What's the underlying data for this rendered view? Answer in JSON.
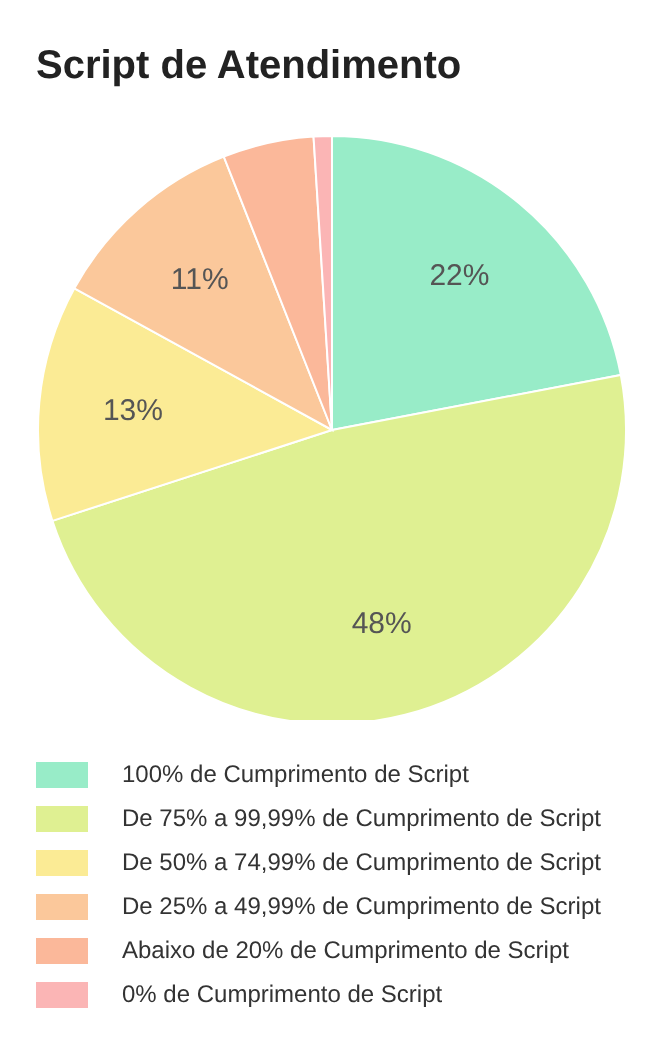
{
  "chart_data": {
    "type": "pie",
    "title": "Script de Atendimento",
    "categories": [
      "100% de Cumprimento de Script",
      "De 75% a 99,99% de Cumprimento de Script",
      "De 50% a 74,99% de Cumprimento de Script",
      "De 25% a 49,99% de Cumprimento de Script",
      "Abaixo de 20% de Cumprimento de Script",
      "0% de Cumprimento de Script"
    ],
    "values": [
      22,
      48,
      13,
      11,
      5,
      1
    ],
    "colors": [
      "#98ecc8",
      "#dff092",
      "#fbeb95",
      "#fbc89b",
      "#fbb89a",
      "#fbb5b5"
    ],
    "value_labels": [
      "22%",
      "48%",
      "13%",
      "11%",
      null,
      null
    ],
    "legend": "bottom"
  }
}
